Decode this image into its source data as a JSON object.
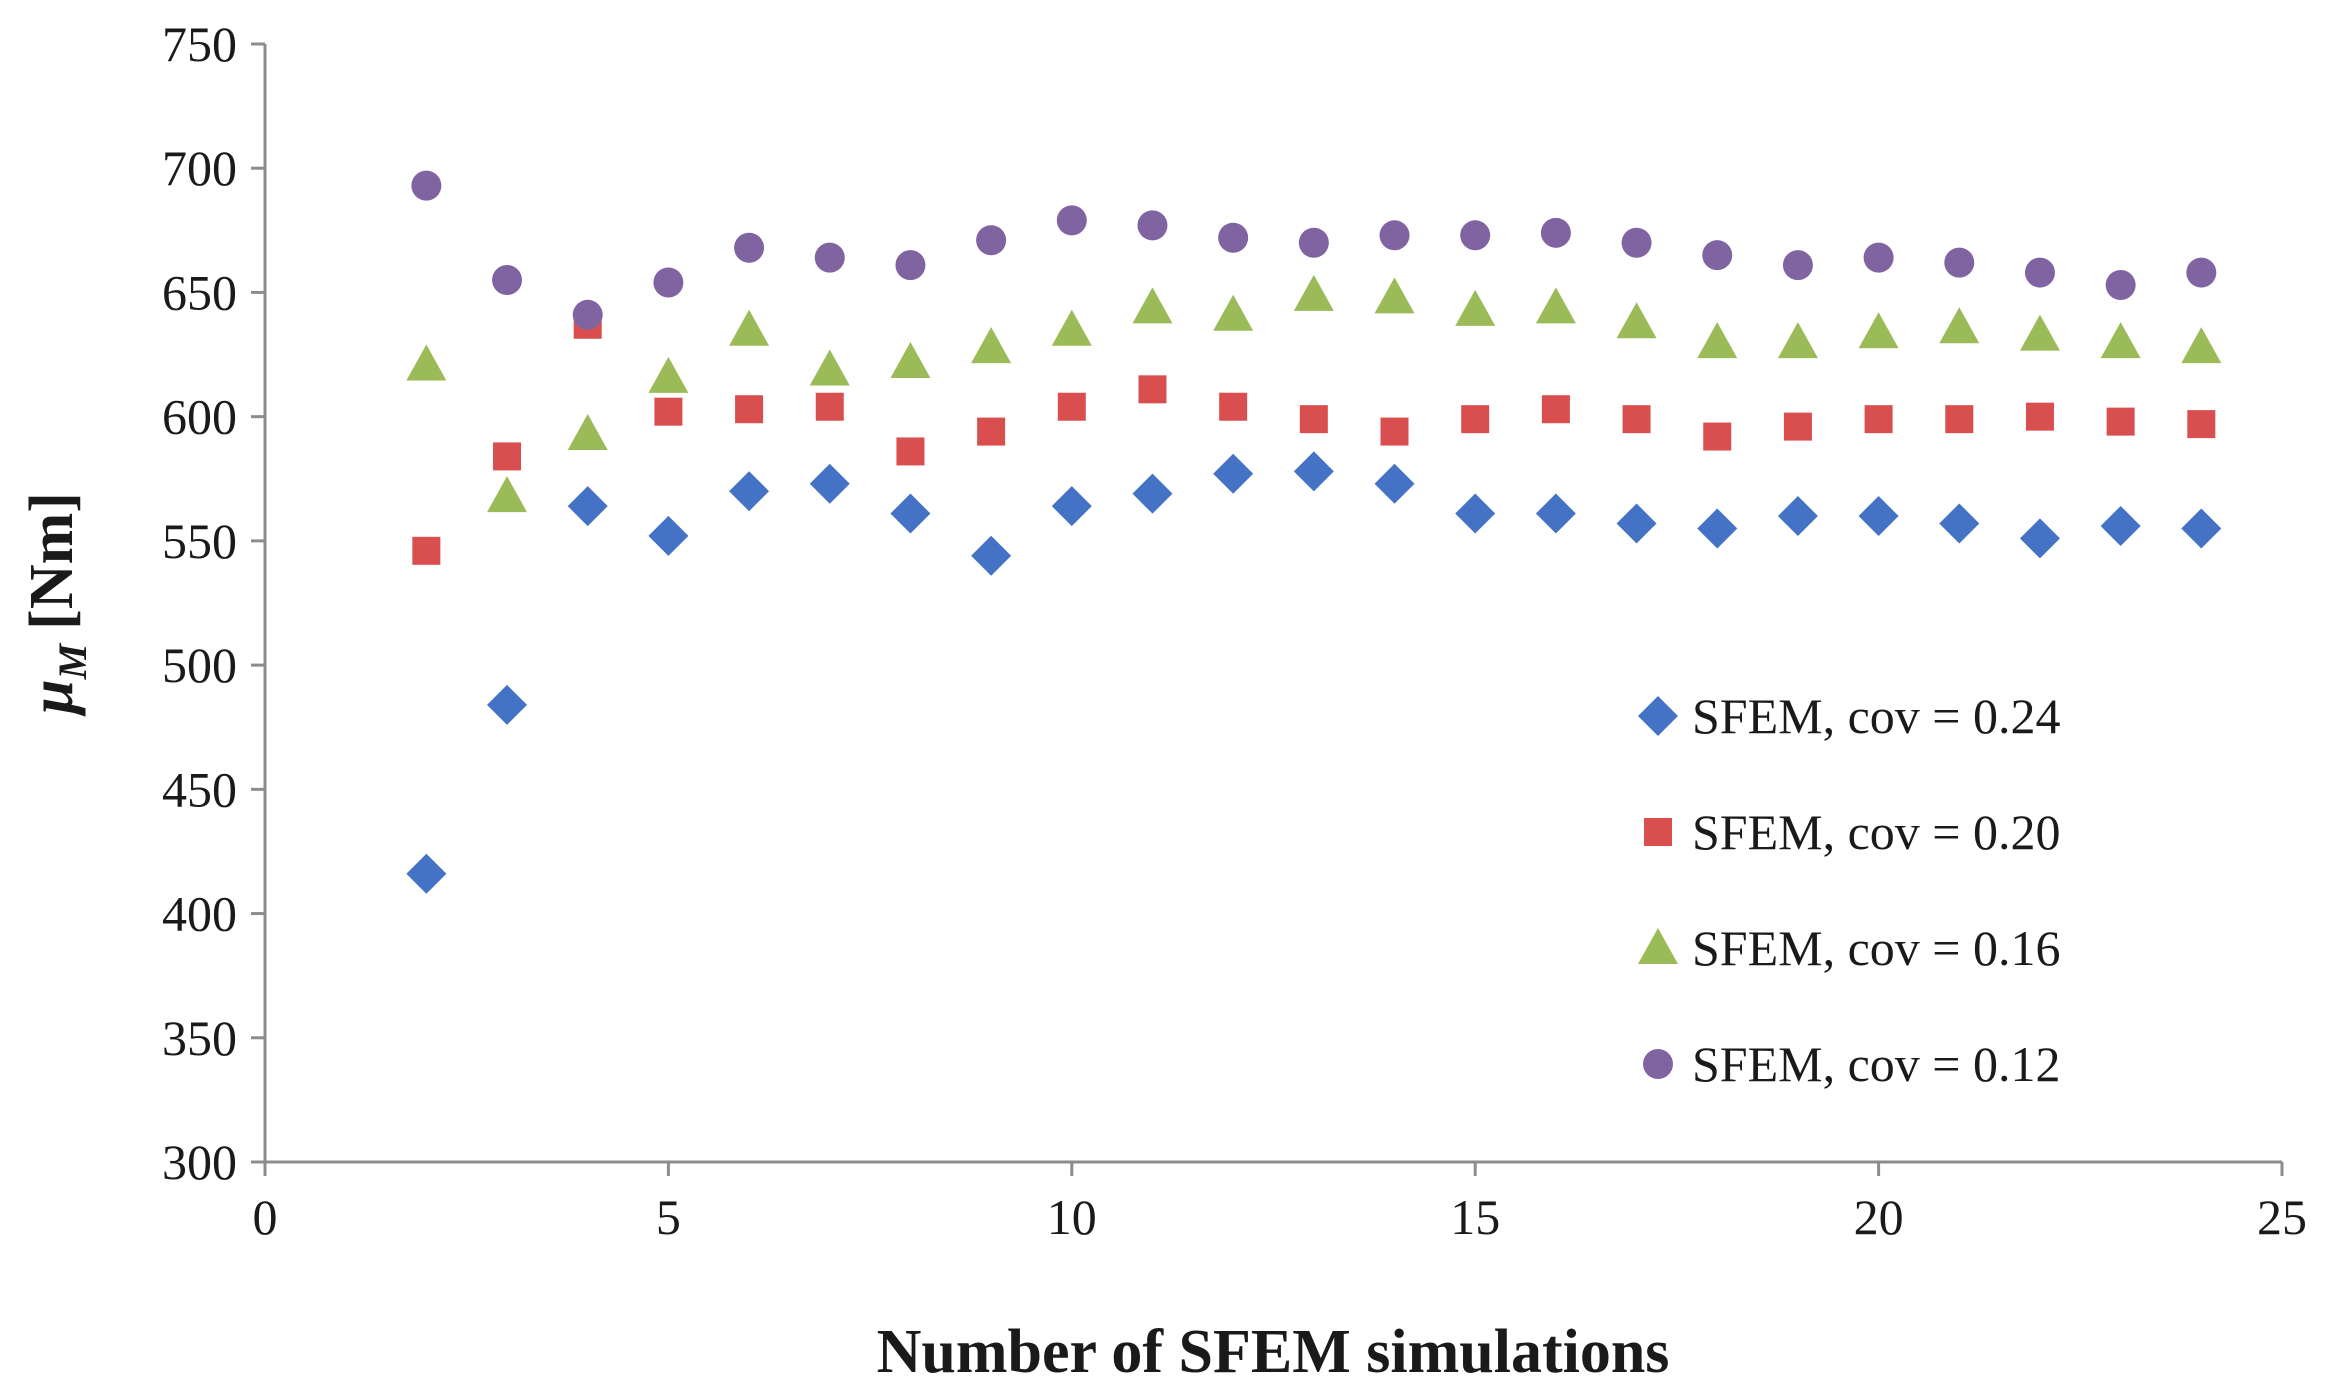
{
  "chart_data": {
    "type": "scatter",
    "title": "",
    "xlabel": "Number of SFEM simulations",
    "ylabel_symbol": "μ",
    "ylabel_subscript": "M",
    "ylabel_unit": "[Nm]",
    "xlim": [
      0,
      25
    ],
    "ylim": [
      300,
      750
    ],
    "xticks": [
      "0",
      "5",
      "10",
      "15",
      "20",
      "25"
    ],
    "yticks": [
      "300",
      "350",
      "400",
      "450",
      "500",
      "550",
      "600",
      "650",
      "700",
      "750"
    ],
    "grid": false,
    "legend_position": "right",
    "x": [
      2,
      3,
      4,
      5,
      6,
      7,
      8,
      9,
      10,
      11,
      12,
      13,
      14,
      15,
      16,
      17,
      18,
      19,
      20,
      21,
      22,
      23,
      24
    ],
    "series": [
      {
        "name": "SFEM, cov = 0.24",
        "marker": "diamond",
        "color": "#4472C4",
        "values": [
          416,
          484,
          564,
          552,
          570,
          573,
          561,
          544,
          564,
          569,
          577,
          578,
          573,
          561,
          561,
          557,
          555,
          560,
          560,
          557,
          551,
          556,
          555
        ]
      },
      {
        "name": "SFEM, cov = 0.20",
        "marker": "square",
        "color": "#D94F4F",
        "values": [
          546,
          584,
          637,
          602,
          603,
          604,
          586,
          594,
          604,
          611,
          604,
          599,
          594,
          599,
          603,
          599,
          592,
          596,
          599,
          599,
          600,
          598,
          597
        ]
      },
      {
        "name": "SFEM, cov = 0.16",
        "marker": "triangle",
        "color": "#9BBB59",
        "values": [
          621,
          568,
          593,
          616,
          635,
          619,
          622,
          628,
          635,
          644,
          641,
          649,
          648,
          643,
          644,
          638,
          630,
          630,
          634,
          636,
          633,
          630,
          628
        ]
      },
      {
        "name": "SFEM, cov = 0.12",
        "marker": "circle",
        "color": "#8064A2",
        "values": [
          693,
          655,
          641,
          654,
          668,
          664,
          661,
          671,
          679,
          677,
          672,
          670,
          673,
          673,
          674,
          670,
          665,
          661,
          664,
          662,
          658,
          653,
          658
        ]
      }
    ]
  }
}
